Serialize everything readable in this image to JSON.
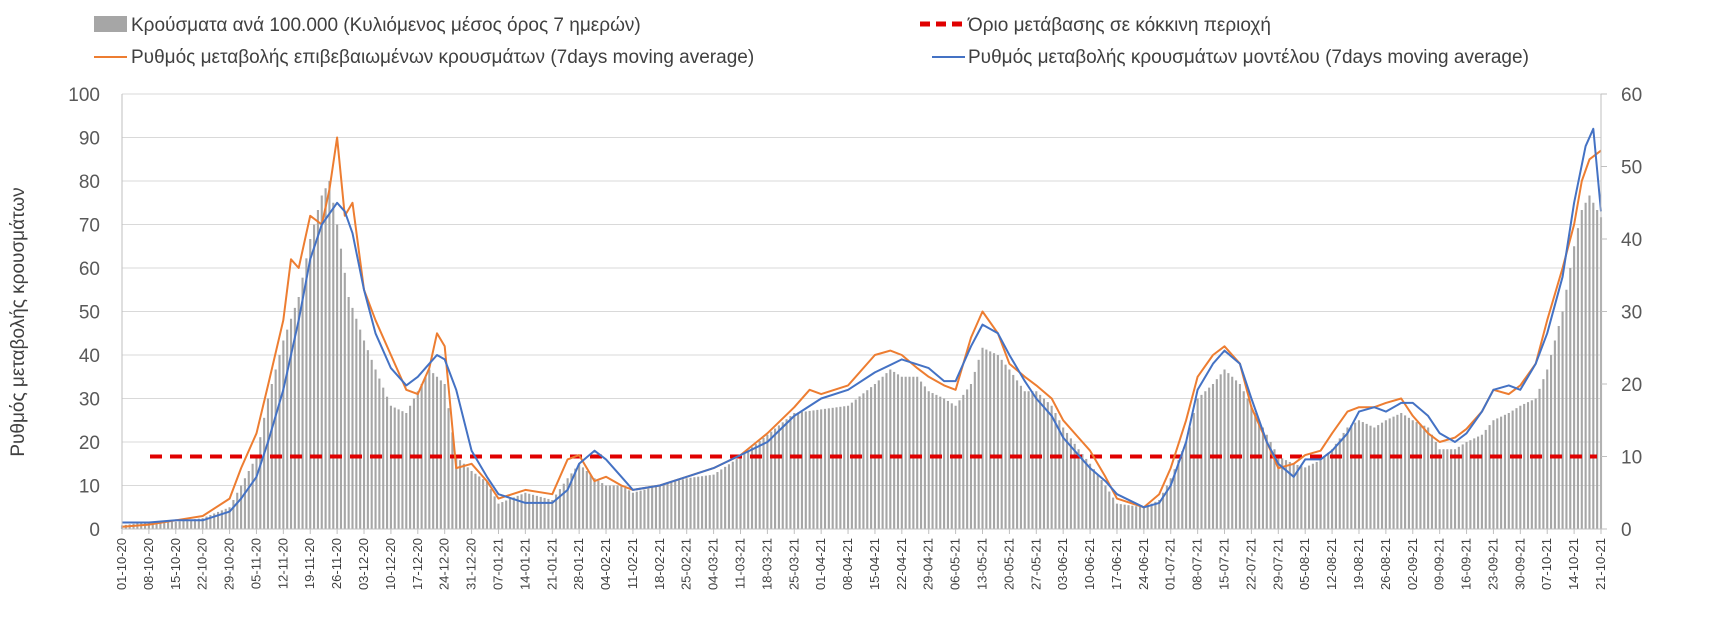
{
  "chart_data": {
    "type": "bar",
    "title": "",
    "xlabel": "",
    "ylabel": "Ρυθμός μεταβολής κρουσμάτων",
    "ylim": [
      0,
      100
    ],
    "y2lim": [
      0,
      60
    ],
    "y_ticks": [
      "0",
      "10",
      "20",
      "30",
      "40",
      "50",
      "60",
      "70",
      "80",
      "90",
      "100"
    ],
    "y2_ticks": [
      "0",
      "10",
      "20",
      "30",
      "40",
      "50",
      "60"
    ],
    "x_ticks": [
      "01-10-20",
      "08-10-20",
      "15-10-20",
      "22-10-20",
      "29-10-20",
      "05-11-20",
      "12-11-20",
      "19-11-20",
      "26-11-20",
      "03-12-20",
      "10-12-20",
      "17-12-20",
      "24-12-20",
      "31-12-20",
      "07-01-21",
      "14-01-21",
      "21-01-21",
      "28-01-21",
      "04-02-21",
      "11-02-21",
      "18-02-21",
      "25-02-21",
      "04-03-21",
      "11-03-21",
      "18-03-21",
      "25-03-21",
      "01-04-21",
      "08-04-21",
      "15-04-21",
      "22-04-21",
      "29-04-21",
      "06-05-21",
      "13-05-21",
      "20-05-21",
      "27-05-21",
      "03-06-21",
      "10-06-21",
      "17-06-21",
      "24-06-21",
      "01-07-21",
      "08-07-21",
      "15-07-21",
      "22-07-21",
      "29-07-21",
      "05-08-21",
      "12-08-21",
      "19-08-21",
      "26-08-21",
      "02-09-21",
      "09-09-21",
      "16-09-21",
      "23-09-21",
      "30-09-21",
      "07-10-21",
      "14-10-21",
      "21-10-21"
    ],
    "legend": {
      "placement": "top",
      "bars": "Κρούσματα ανά 100.000 (Κυλιόμενος μέσος όρος 7 ημερών)",
      "threshold": "Όριο μετάβασης σε κόκκινη περιοχή",
      "orange": "Ρυθμός μεταβολής επιβεβαιωμένων κρουσμάτων (7days moving average)",
      "blue": "Ρυθμός μεταβολής κρουσμάτων μοντέλου (7days moving average)"
    },
    "colors": {
      "bars": "#a6a6a6",
      "threshold": "#e00000",
      "orange": "#ed7d31",
      "blue": "#4472c4",
      "grid": "#d9d9d9"
    },
    "grid": true,
    "threshold_right_axis": 10,
    "series": [
      {
        "name": "Κρούσματα ανά 100.000 (Κυλιόμενος μέσος όρος 7 ημερών)",
        "axis": "right",
        "x": [
          "01-10-20",
          "08-10-20",
          "15-10-20",
          "22-10-20",
          "29-10-20",
          "01-11-20",
          "05-11-20",
          "08-11-20",
          "12-11-20",
          "16-11-20",
          "19-11-20",
          "22-11-20",
          "24-11-20",
          "26-11-20",
          "29-11-20",
          "03-12-20",
          "06-12-20",
          "10-12-20",
          "14-12-20",
          "17-12-20",
          "20-12-20",
          "24-12-20",
          "27-12-20",
          "31-12-20",
          "04-01-21",
          "07-01-21",
          "14-01-21",
          "21-01-21",
          "25-01-21",
          "28-01-21",
          "01-02-21",
          "04-02-21",
          "08-02-21",
          "11-02-21",
          "18-02-21",
          "25-02-21",
          "04-03-21",
          "11-03-21",
          "18-03-21",
          "25-03-21",
          "01-04-21",
          "08-04-21",
          "15-04-21",
          "19-04-21",
          "22-04-21",
          "26-04-21",
          "29-04-21",
          "03-05-21",
          "06-05-21",
          "10-05-21",
          "13-05-21",
          "17-05-21",
          "20-05-21",
          "24-05-21",
          "27-05-21",
          "31-05-21",
          "03-06-21",
          "07-06-21",
          "10-06-21",
          "14-06-21",
          "17-06-21",
          "24-06-21",
          "28-06-21",
          "01-07-21",
          "05-07-21",
          "08-07-21",
          "12-07-21",
          "15-07-21",
          "19-07-21",
          "22-07-21",
          "26-07-21",
          "29-07-21",
          "02-08-21",
          "05-08-21",
          "09-08-21",
          "12-08-21",
          "16-08-21",
          "19-08-21",
          "23-08-21",
          "26-08-21",
          "30-08-21",
          "02-09-21",
          "06-09-21",
          "09-09-21",
          "13-09-21",
          "16-09-21",
          "20-09-21",
          "23-09-21",
          "27-09-21",
          "30-09-21",
          "04-10-21",
          "07-10-21",
          "11-10-21",
          "14-10-21",
          "16-10-21",
          "18-10-21",
          "21-10-21"
        ],
        "values": [
          0.5,
          1,
          1,
          1.5,
          3,
          6,
          10,
          18,
          26,
          32,
          40,
          46,
          48,
          42,
          32,
          26,
          22,
          17,
          16,
          19,
          22,
          20,
          10,
          8,
          6.5,
          3.5,
          5,
          4,
          7,
          9,
          7,
          6,
          6,
          5,
          6,
          7,
          7.5,
          10,
          13,
          16,
          16.5,
          17,
          20,
          22,
          21,
          21,
          19,
          18,
          17,
          20,
          25,
          24,
          22,
          19,
          19,
          17,
          14,
          11,
          9,
          6,
          3.5,
          3,
          4,
          7,
          12,
          18,
          20,
          22,
          20,
          17,
          13,
          10,
          9,
          8.5,
          9.5,
          11,
          14,
          15,
          14,
          15,
          16,
          15,
          14,
          11,
          11,
          12,
          13,
          15,
          16,
          17,
          18,
          22,
          30,
          39,
          44,
          46,
          43
        ]
      },
      {
        "name": "Ρυθμός μεταβολής επιβεβαιωμένων κρουσμάτων (7days moving average)",
        "axis": "left",
        "x": [
          "01-10-20",
          "08-10-20",
          "15-10-20",
          "22-10-20",
          "29-10-20",
          "01-11-20",
          "05-11-20",
          "08-11-20",
          "12-11-20",
          "14-11-20",
          "16-11-20",
          "19-11-20",
          "22-11-20",
          "24-11-20",
          "26-11-20",
          "28-11-20",
          "30-11-20",
          "03-12-20",
          "06-12-20",
          "10-12-20",
          "14-12-20",
          "17-12-20",
          "20-12-20",
          "22-12-20",
          "24-12-20",
          "27-12-20",
          "31-12-20",
          "04-01-21",
          "07-01-21",
          "14-01-21",
          "21-01-21",
          "25-01-21",
          "28-01-21",
          "01-02-21",
          "04-02-21",
          "08-02-21",
          "11-02-21",
          "18-02-21",
          "25-02-21",
          "04-03-21",
          "11-03-21",
          "18-03-21",
          "25-03-21",
          "29-03-21",
          "01-04-21",
          "08-04-21",
          "15-04-21",
          "19-04-21",
          "22-04-21",
          "26-04-21",
          "29-04-21",
          "03-05-21",
          "06-05-21",
          "10-05-21",
          "13-05-21",
          "17-05-21",
          "20-05-21",
          "24-05-21",
          "27-05-21",
          "31-05-21",
          "03-06-21",
          "07-06-21",
          "10-06-21",
          "14-06-21",
          "17-06-21",
          "24-06-21",
          "28-06-21",
          "01-07-21",
          "05-07-21",
          "08-07-21",
          "12-07-21",
          "15-07-21",
          "19-07-21",
          "22-07-21",
          "26-07-21",
          "29-07-21",
          "02-08-21",
          "05-08-21",
          "09-08-21",
          "12-08-21",
          "16-08-21",
          "19-08-21",
          "23-08-21",
          "26-08-21",
          "30-08-21",
          "02-09-21",
          "06-09-21",
          "09-09-21",
          "13-09-21",
          "16-09-21",
          "20-09-21",
          "23-09-21",
          "27-09-21",
          "30-09-21",
          "04-10-21",
          "07-10-21",
          "11-10-21",
          "14-10-21",
          "16-10-21",
          "18-10-21",
          "21-10-21"
        ],
        "values": [
          0.5,
          1,
          2,
          3,
          7,
          14,
          22,
          33,
          48,
          62,
          60,
          72,
          70,
          78,
          90,
          72,
          75,
          55,
          48,
          40,
          32,
          31,
          37,
          45,
          42,
          14,
          15,
          11,
          7,
          9,
          8,
          16,
          17,
          11,
          12,
          10,
          9,
          10,
          12,
          14,
          17,
          22,
          28,
          32,
          31,
          33,
          40,
          41,
          40,
          37,
          35,
          33,
          32,
          44,
          50,
          45,
          38,
          35,
          33,
          30,
          25,
          21,
          18,
          12,
          7,
          5,
          8,
          14,
          25,
          35,
          40,
          42,
          38,
          28,
          20,
          14,
          15,
          17,
          18,
          22,
          27,
          28,
          28,
          29,
          30,
          26,
          22,
          20,
          21,
          23,
          27,
          32,
          31,
          33,
          38,
          48,
          60,
          70,
          80,
          85,
          87
        ]
      },
      {
        "name": "Ρυθμός μεταβολής κρουσμάτων μοντέλου (7days moving average)",
        "axis": "left",
        "x": [
          "01-10-20",
          "08-10-20",
          "15-10-20",
          "22-10-20",
          "29-10-20",
          "01-11-20",
          "05-11-20",
          "08-11-20",
          "12-11-20",
          "16-11-20",
          "19-11-20",
          "22-11-20",
          "26-11-20",
          "28-11-20",
          "30-11-20",
          "03-12-20",
          "06-12-20",
          "10-12-20",
          "14-12-20",
          "17-12-20",
          "20-12-20",
          "22-12-20",
          "24-12-20",
          "27-12-20",
          "31-12-20",
          "04-01-21",
          "07-01-21",
          "14-01-21",
          "21-01-21",
          "25-01-21",
          "28-01-21",
          "01-02-21",
          "04-02-21",
          "08-02-21",
          "11-02-21",
          "18-02-21",
          "25-02-21",
          "04-03-21",
          "11-03-21",
          "18-03-21",
          "25-03-21",
          "01-04-21",
          "08-04-21",
          "15-04-21",
          "22-04-21",
          "29-04-21",
          "03-05-21",
          "06-05-21",
          "10-05-21",
          "13-05-21",
          "17-05-21",
          "20-05-21",
          "24-05-21",
          "27-05-21",
          "31-05-21",
          "03-06-21",
          "07-06-21",
          "10-06-21",
          "14-06-21",
          "17-06-21",
          "24-06-21",
          "28-06-21",
          "01-07-21",
          "05-07-21",
          "08-07-21",
          "12-07-21",
          "15-07-21",
          "19-07-21",
          "22-07-21",
          "26-07-21",
          "29-07-21",
          "02-08-21",
          "05-08-21",
          "09-08-21",
          "12-08-21",
          "16-08-21",
          "19-08-21",
          "23-08-21",
          "26-08-21",
          "30-08-21",
          "02-09-21",
          "06-09-21",
          "09-09-21",
          "13-09-21",
          "16-09-21",
          "20-09-21",
          "23-09-21",
          "27-09-21",
          "30-09-21",
          "04-10-21",
          "07-10-21",
          "11-10-21",
          "14-10-21",
          "17-10-21",
          "19-10-21",
          "21-10-21"
        ],
        "values": [
          1.5,
          1.5,
          2,
          2,
          4,
          7,
          12,
          20,
          32,
          48,
          62,
          70,
          75,
          73,
          68,
          55,
          45,
          37,
          33,
          35,
          38,
          40,
          39,
          32,
          18,
          12,
          8,
          6,
          6,
          9,
          15,
          18,
          16,
          12,
          9,
          10,
          12,
          14,
          17,
          20,
          26,
          30,
          32,
          36,
          39,
          37,
          34,
          34,
          42,
          47,
          45,
          40,
          34,
          30,
          26,
          21,
          17,
          14,
          11,
          8,
          5,
          6,
          10,
          20,
          32,
          38,
          41,
          38,
          30,
          20,
          15,
          12,
          16,
          16,
          18,
          22,
          27,
          28,
          27,
          29,
          29,
          26,
          22,
          20,
          22,
          27,
          32,
          33,
          32,
          38,
          45,
          58,
          75,
          88,
          92,
          73
        ]
      }
    ]
  }
}
